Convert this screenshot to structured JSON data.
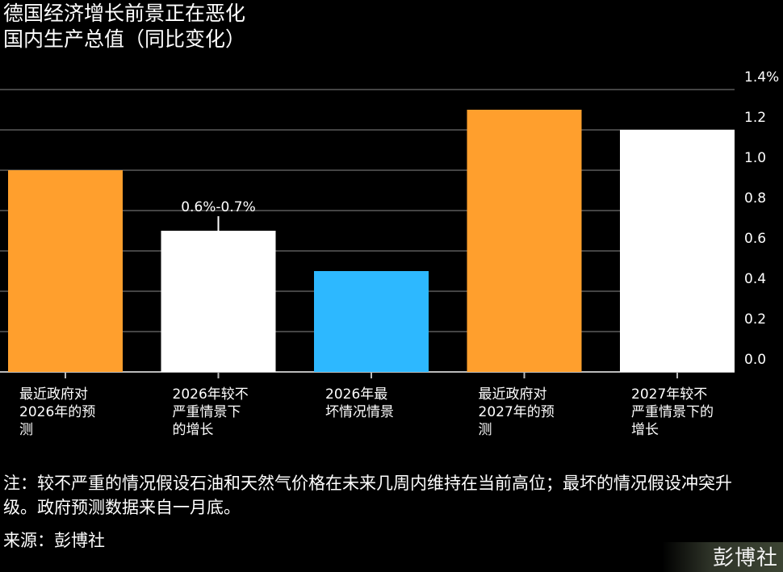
{
  "header": {
    "title": "德国经济增长前景正在恶化",
    "subtitle": "国内生产总值（同比变化）"
  },
  "chart_data": {
    "type": "bar",
    "categories": [
      "最近政府对\n2026年的预\n测",
      "2026年较不\n严重情景下\n的增长",
      "2026年最\n坏情况情景",
      "最近政府对\n2027年的预\n测",
      "2027年较不\n严重情景下的\n增长"
    ],
    "values": [
      1.0,
      0.7,
      0.5,
      1.3,
      1.2
    ],
    "colors": [
      "#ff9f2d",
      "#ffffff",
      "#2db8ff",
      "#ff9f2d",
      "#ffffff"
    ],
    "annotations": [
      {
        "category_index": 1,
        "text": "0.6%-0.7%",
        "value": 0.7,
        "range": [
          0.6,
          0.7
        ]
      }
    ],
    "y_ticks": [
      "0.0",
      "0.2",
      "0.4",
      "0.6",
      "0.8",
      "1.0",
      "1.2",
      "1.4%"
    ],
    "ylim": [
      0,
      1.4
    ],
    "y_axis_position": "right",
    "grid": true
  },
  "footer": {
    "note": "注：较不严重的情况假设石油和天然气价格在未来几周内维持在当前高位；最坏的情况假设冲突升级。政府预测数据来自一月底。",
    "source": "来源：彭博社",
    "logo_text": "彭博社"
  }
}
